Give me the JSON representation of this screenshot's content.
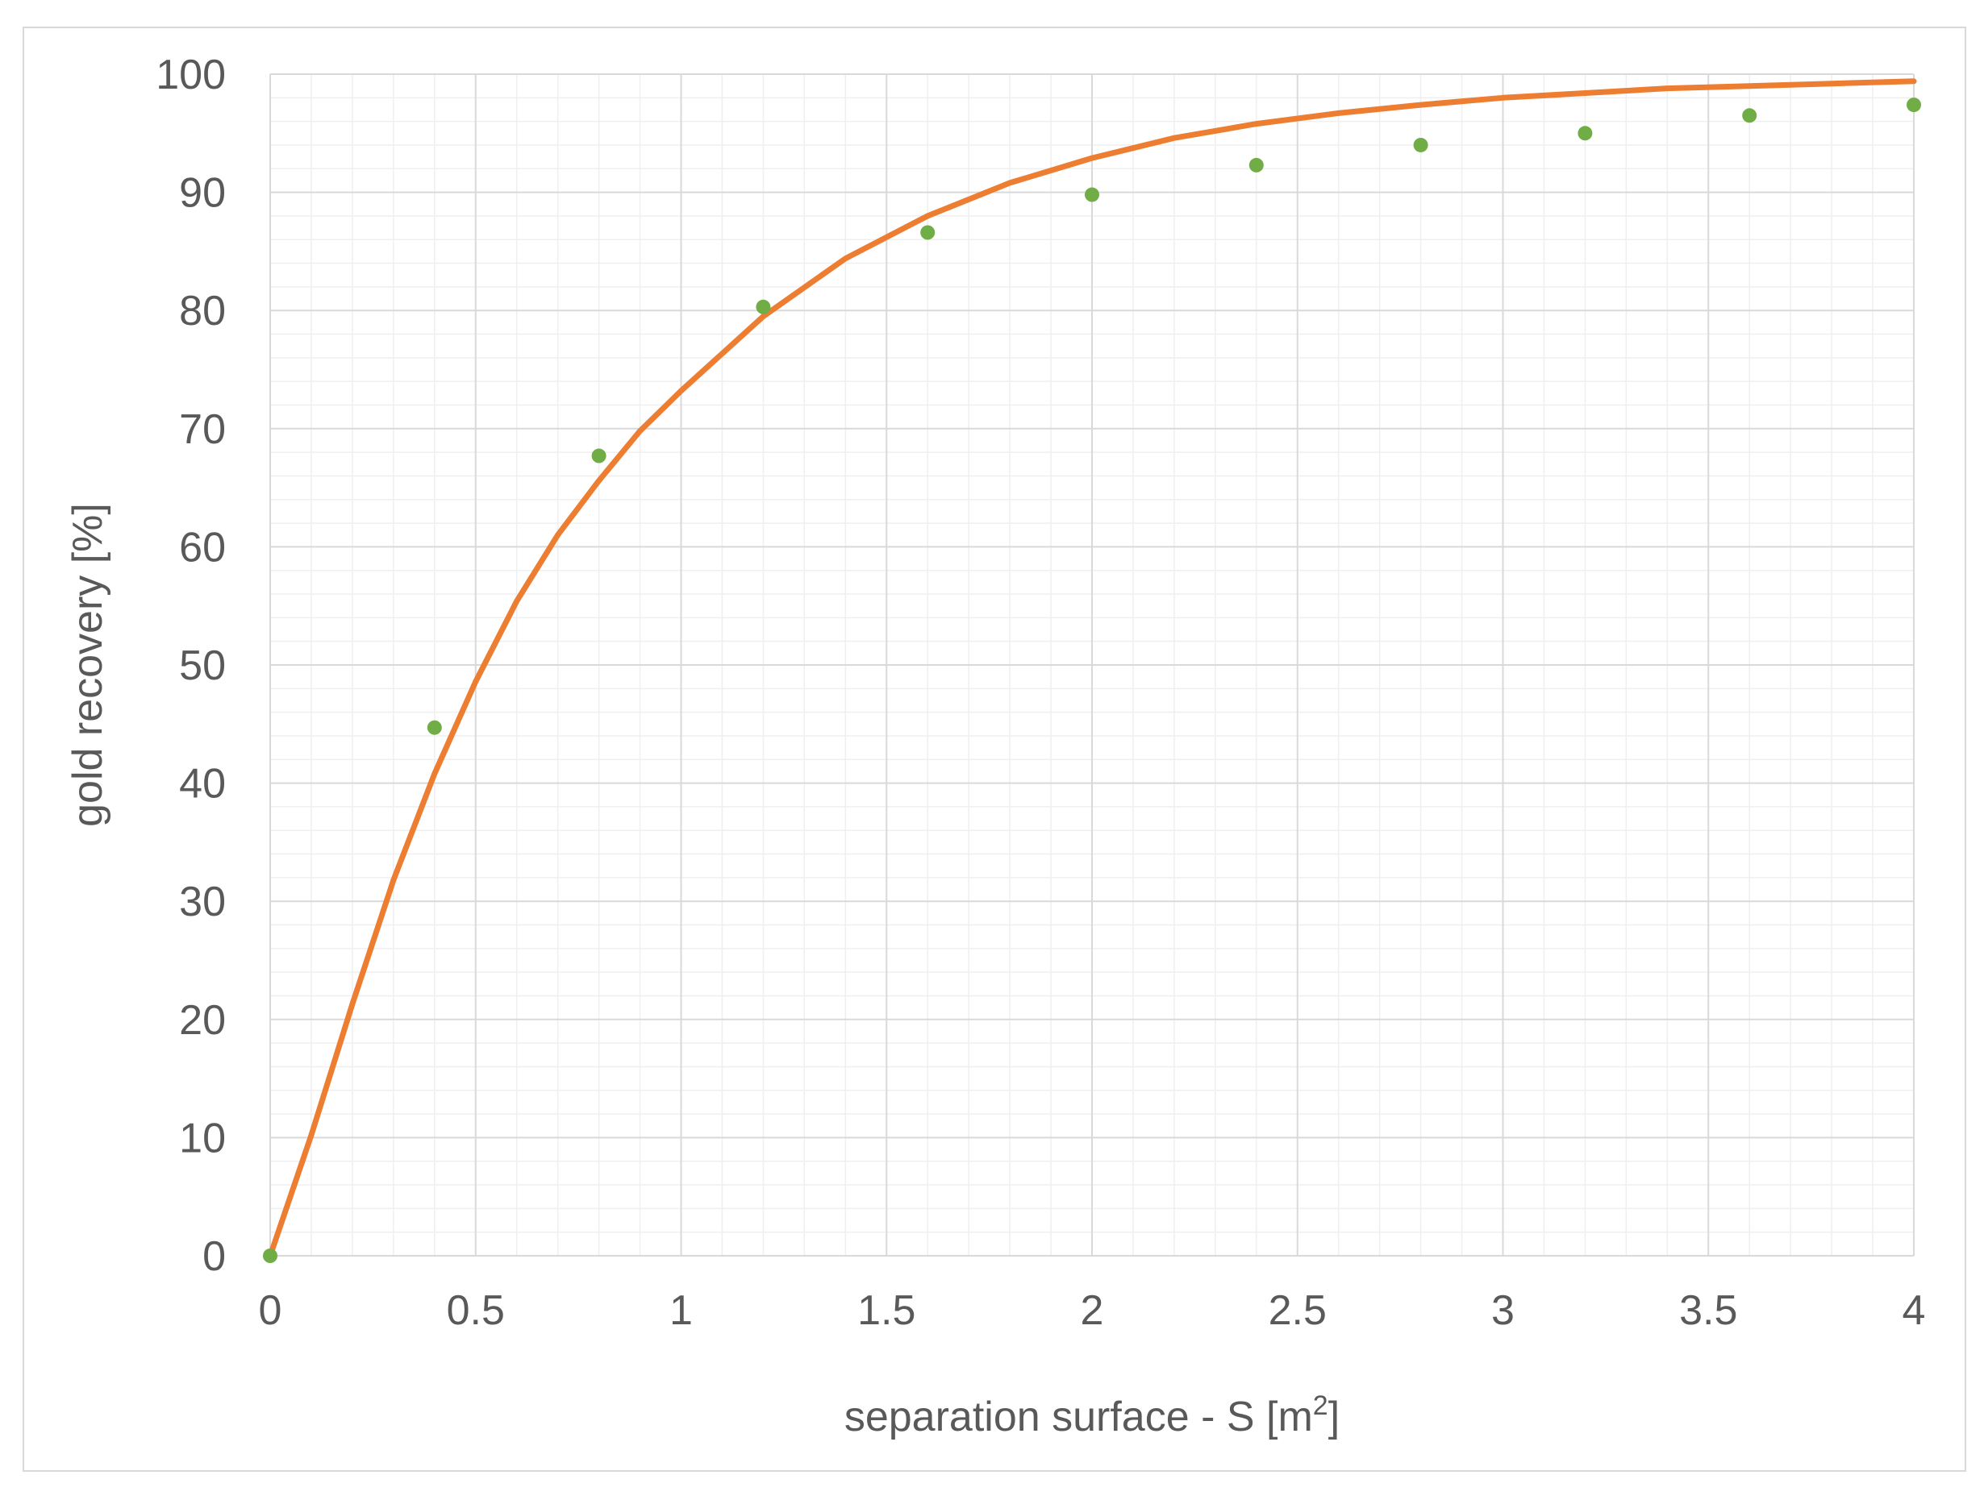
{
  "chart_data": {
    "type": "scatter",
    "xlabel_main": "separation surface - S [m",
    "xlabel_sup": "2",
    "xlabel_end": "]",
    "ylabel": "gold recovery [%]",
    "xlim": [
      0,
      4
    ],
    "ylim": [
      0,
      100
    ],
    "x_ticks": [
      "0",
      "0.5",
      "1",
      "1.5",
      "2",
      "2.5",
      "3",
      "3.5",
      "4"
    ],
    "y_ticks": [
      "0",
      "10",
      "20",
      "30",
      "40",
      "50",
      "60",
      "70",
      "80",
      "90",
      "100"
    ],
    "x_major_step": 0.5,
    "y_major_step": 10,
    "x_minor_step": 0.1,
    "y_minor_step": 2,
    "grid": true,
    "colors": {
      "points": "#70ad47",
      "curve": "#ed7d31",
      "major_grid": "#d9d9d9",
      "minor_grid": "#efefef",
      "text": "#595959"
    },
    "series": [
      {
        "kind": "points",
        "x": [
          0,
          0.4,
          0.8,
          1.2,
          1.6,
          2.0,
          2.4,
          2.8,
          3.2,
          3.6,
          4.0
        ],
        "y": [
          0,
          44.7,
          67.7,
          80.3,
          86.6,
          89.8,
          92.3,
          94.0,
          95.0,
          96.5,
          97.4
        ]
      },
      {
        "kind": "curve",
        "x": [
          0,
          0.1,
          0.2,
          0.3,
          0.4,
          0.5,
          0.6,
          0.7,
          0.8,
          0.9,
          1.0,
          1.2,
          1.4,
          1.6,
          1.8,
          2.0,
          2.2,
          2.4,
          2.6,
          2.8,
          3.0,
          3.2,
          3.4,
          3.6,
          3.8,
          4.0
        ],
        "y": [
          0,
          10.2,
          21.3,
          31.8,
          40.8,
          48.6,
          55.4,
          61.0,
          65.6,
          69.8,
          73.2,
          79.5,
          84.4,
          88.0,
          90.8,
          92.9,
          94.6,
          95.8,
          96.7,
          97.4,
          98.0,
          98.4,
          98.8,
          99.0,
          99.2,
          99.4
        ]
      }
    ]
  }
}
